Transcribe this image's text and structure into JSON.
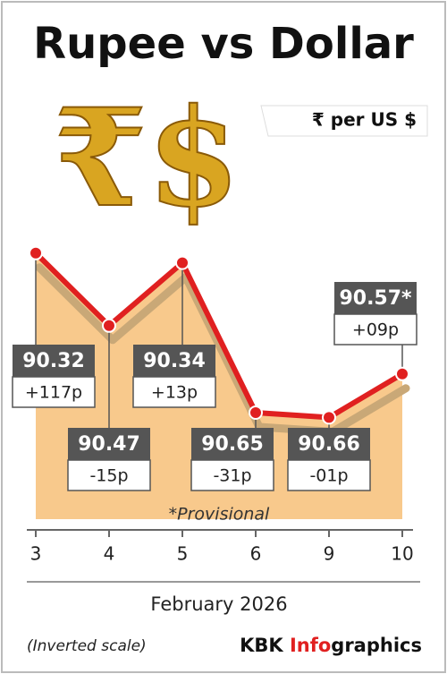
{
  "chart_data": {
    "type": "line",
    "title": "Rupee vs Dollar",
    "subtitle": "₹ per US $",
    "categories": [
      "3",
      "4",
      "5",
      "6",
      "9",
      "10"
    ],
    "values": [
      90.32,
      90.47,
      90.34,
      90.65,
      90.66,
      90.57
    ],
    "value_labels": [
      "90.32",
      "90.47",
      "90.34",
      "90.65",
      "90.66",
      "90.57*"
    ],
    "changes": [
      "+117p",
      "-15p",
      "+13p",
      "-31p",
      "-01p",
      "+09p"
    ],
    "ylim": [
      90.25,
      90.75
    ],
    "inverted": true,
    "color": "#e02020",
    "area_color": "#f8c98c",
    "xlabel": "February 2026",
    "annotation": "*Provisional",
    "note": "(Inverted scale)",
    "source": [
      "KBK ",
      "Info",
      "graphics"
    ]
  }
}
